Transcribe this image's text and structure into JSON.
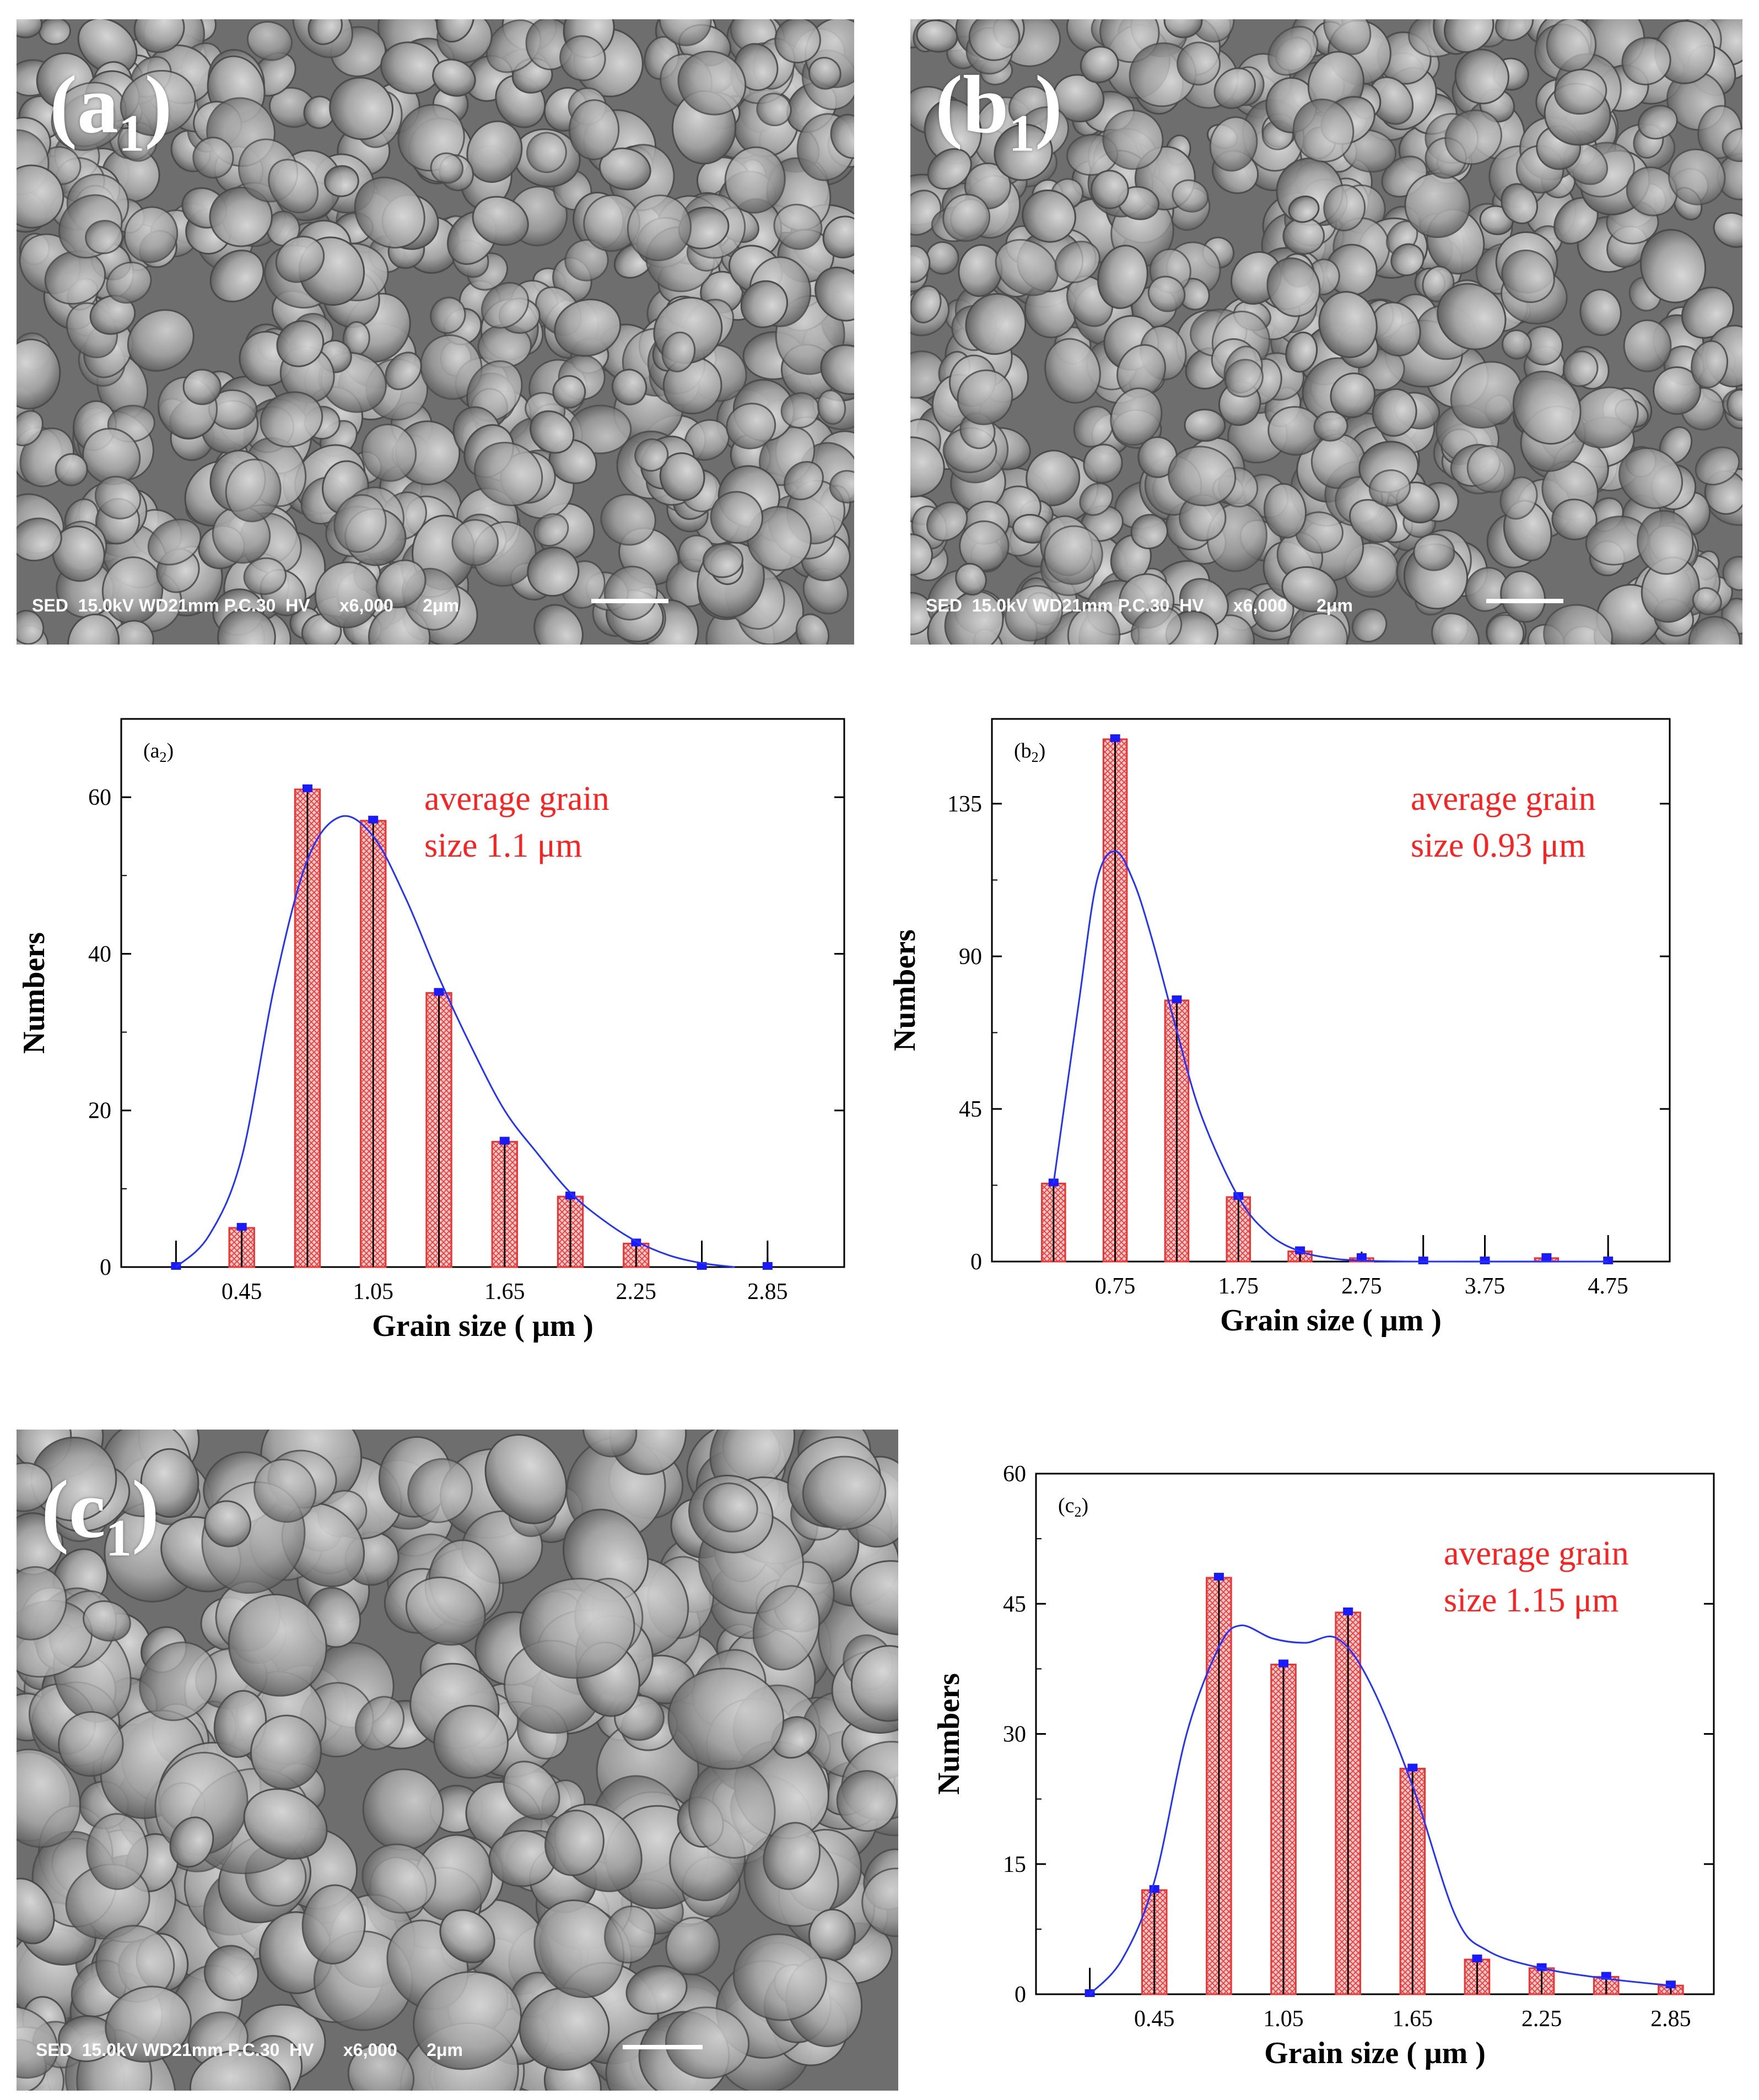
{
  "sem_panels": [
    {
      "label_main": "(a",
      "label_sub": "1",
      "label_close": ")",
      "info": "SED  15.0kV WD21mm P.C.30  HV      x6,000      2μm"
    },
    {
      "label_main": "(b",
      "label_sub": "1",
      "label_close": ")",
      "info": "SED  15.0kV WD21mm P.C.30  HV      x6,000      2μm"
    },
    {
      "label_main": "(c",
      "label_sub": "1",
      "label_close": ")",
      "info": "SED  15.0kV WD21mm P.C.30  HV      x6,000      2μm"
    }
  ],
  "chart_data": [
    {
      "type": "bar",
      "panel_label_main": "(a",
      "panel_label_sub": "2",
      "panel_label_close": ")",
      "annotation": [
        "average grain",
        "size 1.1 μm"
      ],
      "xlabel": "Grain size ( μm )",
      "ylabel": "Numbers",
      "x": [
        0.15,
        0.45,
        0.75,
        1.05,
        1.35,
        1.65,
        1.95,
        2.25,
        2.55,
        2.85
      ],
      "values": [
        0,
        5,
        61,
        57,
        35,
        16,
        9,
        3,
        0,
        0
      ],
      "xticks": [
        0.45,
        1.05,
        1.65,
        2.25,
        2.85
      ],
      "xtick_labels": [
        "0.45",
        "1.05",
        "1.65",
        "2.25",
        "2.85"
      ],
      "yticks": [
        0,
        20,
        40,
        60
      ],
      "xlim": [
        -0.1,
        3.2
      ],
      "ylim": [
        0,
        70
      ],
      "fit_curve": {
        "x": [
          0.15,
          0.3,
          0.45,
          0.6,
          0.75,
          0.9,
          1.05,
          1.2,
          1.35,
          1.5,
          1.65,
          1.8,
          1.95,
          2.1,
          2.25,
          2.4,
          2.55,
          2.7
        ],
        "y": [
          0,
          4,
          14,
          36,
          52,
          57.5,
          55,
          47,
          37,
          28,
          20,
          14.5,
          9.5,
          6,
          3.3,
          1.5,
          0.5,
          0
        ]
      }
    },
    {
      "type": "bar",
      "panel_label_main": "(b",
      "panel_label_sub": "2",
      "panel_label_close": ")",
      "annotation": [
        "average grain",
        "size 0.93 μm"
      ],
      "xlabel": "Grain size ( μm )",
      "ylabel": "Numbers",
      "x": [
        0.25,
        0.75,
        1.25,
        1.75,
        2.25,
        2.75,
        3.25,
        3.75,
        4.25,
        4.75
      ],
      "values": [
        23,
        154,
        77,
        19,
        3,
        1,
        0,
        0,
        1,
        0
      ],
      "xticks": [
        0.75,
        1.75,
        2.75,
        3.75,
        4.75
      ],
      "xtick_labels": [
        "0.75",
        "1.75",
        "2.75",
        "3.75",
        "4.75"
      ],
      "yticks": [
        0,
        45,
        90,
        135
      ],
      "xlim": [
        -0.25,
        5.25
      ],
      "ylim": [
        0,
        160
      ],
      "fit_curve": {
        "x": [
          0.25,
          0.45,
          0.6,
          0.75,
          0.9,
          1.05,
          1.25,
          1.45,
          1.75,
          2.0,
          2.25,
          2.5,
          2.75,
          3.25,
          4.75
        ],
        "y": [
          23,
          75,
          112,
          121,
          112,
          95,
          68,
          43,
          19,
          8,
          3,
          1,
          0.3,
          0,
          0
        ]
      }
    },
    {
      "type": "bar",
      "panel_label_main": "(c",
      "panel_label_sub": "2",
      "panel_label_close": ")",
      "annotation": [
        "average grain",
        "size 1.15 μm"
      ],
      "xlabel": "Grain size ( μm )",
      "ylabel": "Numbers",
      "x": [
        0.15,
        0.45,
        0.75,
        1.05,
        1.35,
        1.65,
        1.95,
        2.25,
        2.55,
        2.85
      ],
      "values": [
        0,
        12,
        48,
        38,
        44,
        26,
        4,
        3,
        2,
        1
      ],
      "xticks": [
        0.45,
        1.05,
        1.65,
        2.25,
        2.85
      ],
      "xtick_labels": [
        "0.45",
        "1.05",
        "1.65",
        "2.25",
        "2.85"
      ],
      "yticks": [
        0,
        15,
        30,
        45,
        60
      ],
      "xlim": [
        -0.1,
        3.05
      ],
      "ylim": [
        0,
        60
      ],
      "fit_curve": {
        "x": [
          0.15,
          0.3,
          0.45,
          0.6,
          0.75,
          0.85,
          1.0,
          1.15,
          1.3,
          1.45,
          1.65,
          1.85,
          2.0,
          2.25,
          2.55,
          2.85
        ],
        "y": [
          0,
          4,
          13,
          30,
          40,
          42.5,
          41,
          40.5,
          41,
          36,
          24,
          9,
          5,
          3,
          1.8,
          1
        ]
      }
    }
  ]
}
